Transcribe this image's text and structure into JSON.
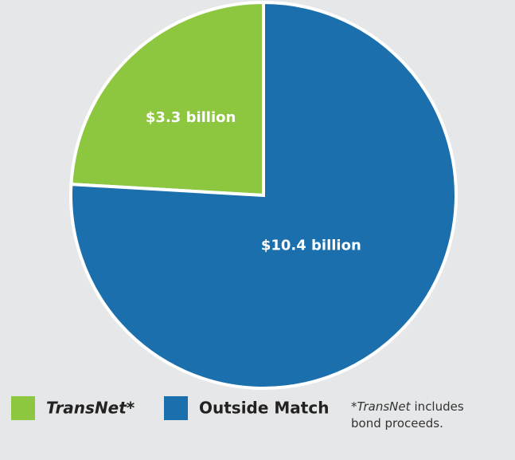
{
  "chart_data": {
    "type": "pie",
    "categories": [
      "TransNet*",
      "Outside Match"
    ],
    "values": [
      3.3,
      10.4
    ],
    "value_labels": [
      "$3.3 billion",
      "$10.4 billion"
    ],
    "colors": [
      "#8dc63f",
      "#1b6fad"
    ],
    "footnote": [
      "*",
      "TransNet",
      "includes",
      "bond proceeds."
    ]
  }
}
